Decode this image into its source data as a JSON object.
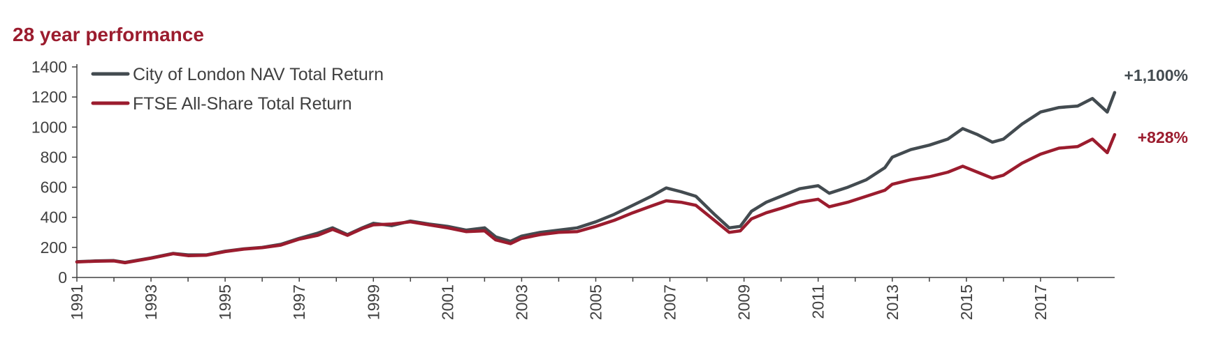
{
  "chart_data": {
    "type": "line",
    "title": "28 year performance",
    "xlabel": "",
    "ylabel": "",
    "xlim": [
      1991,
      2019
    ],
    "ylim": [
      0,
      1400
    ],
    "yticks": [
      0,
      200,
      400,
      600,
      800,
      1000,
      1200,
      1400
    ],
    "xticks": [
      "1991",
      "1993",
      "1995",
      "1997",
      "1999",
      "2001",
      "2003",
      "2005",
      "2007",
      "2009",
      "2011",
      "2013",
      "2015",
      "2017"
    ],
    "grid": false,
    "legend": "top-left",
    "series": [
      {
        "name": "City of London NAV Total Return",
        "color": "#434b50",
        "end_label": "+1,100%",
        "x": [
          1991,
          1991.5,
          1992,
          1992.3,
          1993,
          1993.6,
          1994,
          1994.5,
          1995,
          1995.5,
          1996,
          1996.5,
          1997,
          1997.5,
          1997.9,
          1998.3,
          1998.7,
          1999,
          1999.5,
          2000,
          2000.5,
          2001,
          2001.5,
          2002,
          2002.3,
          2002.7,
          2003,
          2003.5,
          2004,
          2004.5,
          2005,
          2005.5,
          2006,
          2006.5,
          2006.9,
          2007.3,
          2007.7,
          2008.2,
          2008.6,
          2008.9,
          2009.2,
          2009.6,
          2010,
          2010.5,
          2011,
          2011.3,
          2011.8,
          2012.3,
          2012.8,
          2013,
          2013.5,
          2014,
          2014.5,
          2014.9,
          2015.3,
          2015.7,
          2016,
          2016.5,
          2017,
          2017.5,
          2018,
          2018.4,
          2018.8,
          2019
        ],
        "y": [
          105,
          110,
          112,
          100,
          130,
          160,
          150,
          150,
          175,
          190,
          200,
          220,
          260,
          295,
          330,
          285,
          330,
          360,
          345,
          375,
          355,
          340,
          315,
          330,
          270,
          240,
          275,
          300,
          315,
          330,
          370,
          420,
          480,
          540,
          595,
          570,
          540,
          420,
          330,
          340,
          440,
          500,
          540,
          590,
          610,
          560,
          600,
          650,
          730,
          800,
          850,
          880,
          920,
          990,
          950,
          900,
          920,
          1020,
          1100,
          1130,
          1140,
          1190,
          1100,
          1230
        ]
      },
      {
        "name": "FTSE All-Share Total Return",
        "color": "#9b1c2e",
        "end_label": "+828%",
        "x": [
          1991,
          1991.5,
          1992,
          1992.3,
          1993,
          1993.6,
          1994,
          1994.5,
          1995,
          1995.5,
          1996,
          1996.5,
          1997,
          1997.5,
          1997.9,
          1998.3,
          1998.7,
          1999,
          1999.5,
          2000,
          2000.5,
          2001,
          2001.5,
          2002,
          2002.3,
          2002.7,
          2003,
          2003.5,
          2004,
          2004.5,
          2005,
          2005.5,
          2006,
          2006.5,
          2006.9,
          2007.3,
          2007.7,
          2008.2,
          2008.6,
          2008.9,
          2009.2,
          2009.6,
          2010,
          2010.5,
          2011,
          2011.3,
          2011.8,
          2012.3,
          2012.8,
          2013,
          2013.5,
          2014,
          2014.5,
          2014.9,
          2015.3,
          2015.7,
          2016,
          2016.5,
          2017,
          2017.5,
          2018,
          2018.4,
          2018.8,
          2019
        ],
        "y": [
          103,
          108,
          110,
          98,
          128,
          158,
          145,
          148,
          172,
          188,
          198,
          215,
          255,
          280,
          320,
          280,
          325,
          350,
          355,
          370,
          350,
          330,
          305,
          310,
          250,
          225,
          260,
          285,
          300,
          305,
          340,
          380,
          430,
          475,
          510,
          500,
          480,
          380,
          300,
          310,
          390,
          430,
          460,
          500,
          520,
          470,
          500,
          540,
          580,
          620,
          650,
          670,
          700,
          740,
          700,
          660,
          680,
          760,
          820,
          860,
          870,
          920,
          830,
          950
        ]
      }
    ]
  }
}
